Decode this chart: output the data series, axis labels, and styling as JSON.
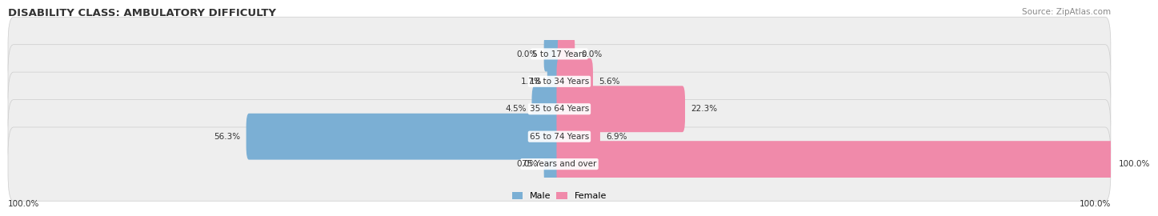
{
  "title": "DISABILITY CLASS: AMBULATORY DIFFICULTY",
  "source": "Source: ZipAtlas.com",
  "categories": [
    "5 to 17 Years",
    "18 to 34 Years",
    "35 to 64 Years",
    "65 to 74 Years",
    "75 Years and over"
  ],
  "male_values": [
    0.0,
    1.7,
    4.5,
    56.3,
    0.0
  ],
  "female_values": [
    0.0,
    5.6,
    22.3,
    6.9,
    100.0
  ],
  "male_color": "#7bafd4",
  "female_color": "#f08aaa",
  "bar_bg_color": "#eeeeee",
  "bar_edge_color": "#cccccc",
  "title_color": "#333333",
  "source_color": "#888888",
  "label_color": "#333333",
  "max_value": 100.0,
  "bar_height": 0.68,
  "figsize": [
    14.06,
    2.69
  ],
  "dpi": 100
}
